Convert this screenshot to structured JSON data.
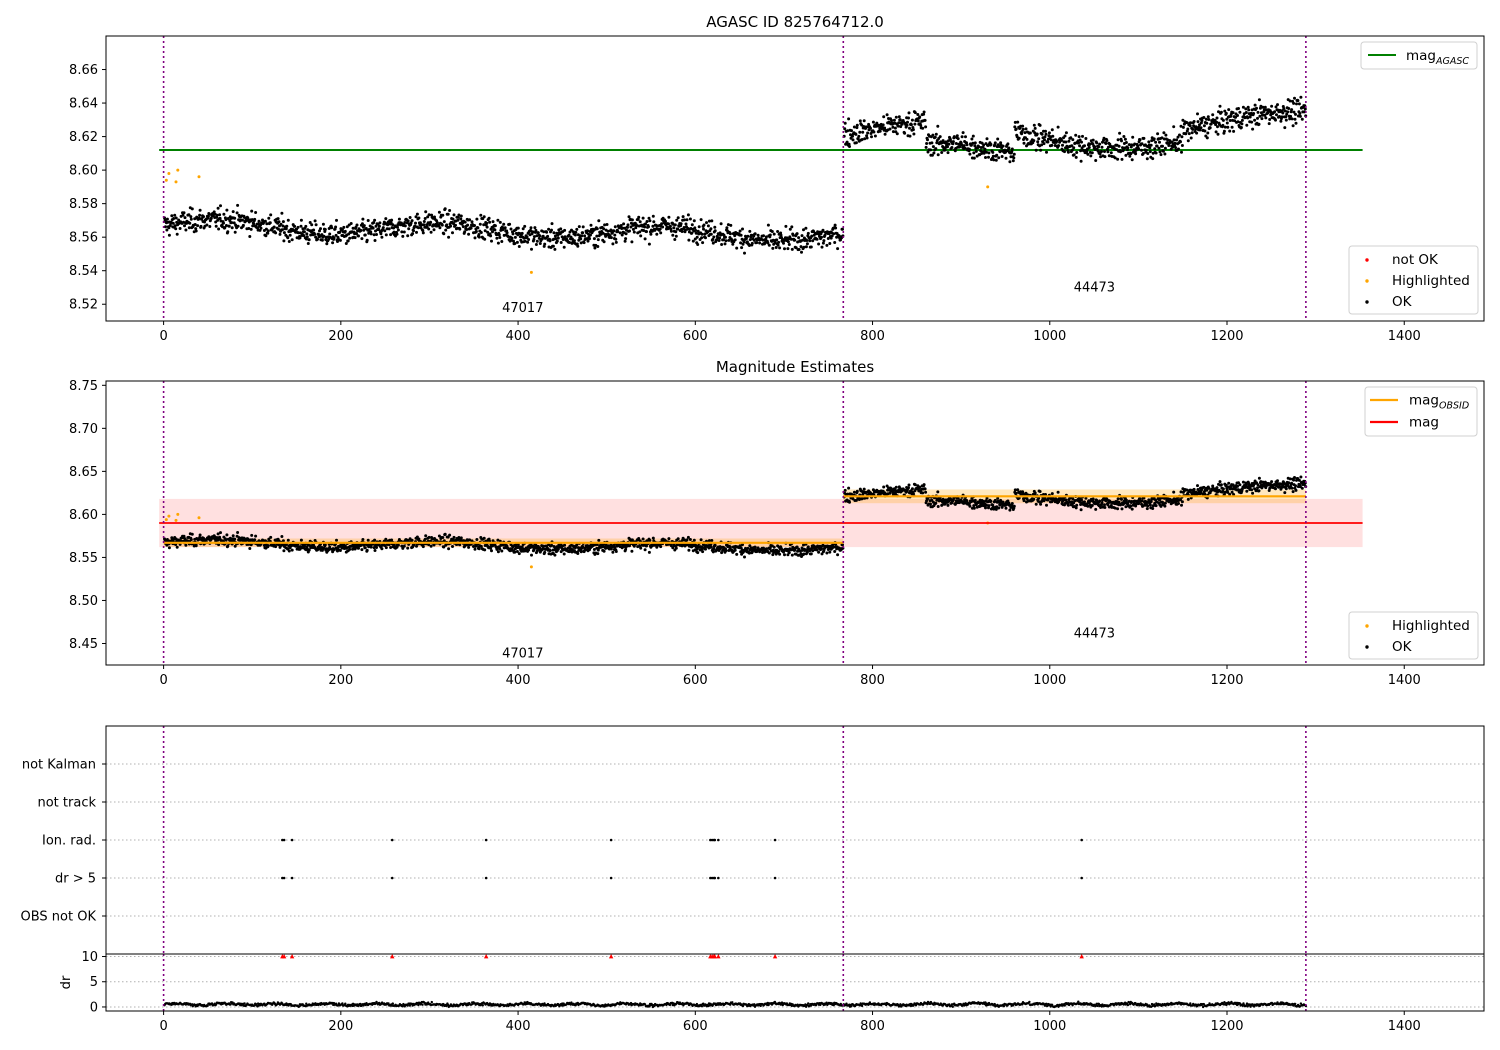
{
  "chart_data": [
    {
      "type": "scatter",
      "title": "AGASC ID 825764712.0",
      "xlabel": "",
      "ylabel": "",
      "xlim": [
        -65,
        1490
      ],
      "ylim": [
        8.51,
        8.68
      ],
      "xticks": [
        0,
        200,
        400,
        600,
        800,
        1000,
        1200,
        1400
      ],
      "yticks": [
        8.52,
        8.54,
        8.56,
        8.58,
        8.6,
        8.62,
        8.64,
        8.66
      ],
      "grid": false,
      "obs_boundaries": [
        0,
        767,
        1289
      ],
      "obsids": [
        {
          "label": "47017",
          "x": 382,
          "y": 8.5155
        },
        {
          "label": "44473",
          "x": 1027,
          "y": 8.5275
        }
      ],
      "segments": [
        {
          "x_start": 0,
          "x_end": 767,
          "level": 8.567,
          "sd": 0.0085,
          "lo": 8.55,
          "hi": 8.585
        },
        {
          "x_start": 767,
          "x_end": 1289,
          "level": 8.621,
          "sd": 0.009,
          "lo": 8.605,
          "hi": 8.645
        }
      ],
      "highlighted_points": [
        {
          "x": 3,
          "y": 8.594
        },
        {
          "x": 6,
          "y": 8.598
        },
        {
          "x": 14,
          "y": 8.593
        },
        {
          "x": 16,
          "y": 8.6
        },
        {
          "x": 40,
          "y": 8.596
        },
        {
          "x": 415,
          "y": 8.539
        },
        {
          "x": 930,
          "y": 8.59
        }
      ],
      "series": [
        {
          "name": "mag_AGASC",
          "value": 8.612,
          "x_range": [
            -5,
            1353
          ],
          "color": "#008000"
        }
      ],
      "legends": [
        {
          "position": "top-right",
          "entries": [
            {
              "label": "mag",
              "sub": "AGASC",
              "marker": "line",
              "color": "#008000"
            }
          ]
        },
        {
          "position": "bottom-right",
          "entries": [
            {
              "label": "not OK",
              "marker": "dot",
              "color": "#ff0000"
            },
            {
              "label": "Highlighted",
              "marker": "dot",
              "color": "#ffa500"
            },
            {
              "label": "OK",
              "marker": "dot",
              "color": "#000000"
            }
          ]
        }
      ]
    },
    {
      "type": "scatter",
      "title": "Magnitude Estimates",
      "xlabel": "",
      "ylabel": "",
      "xlim": [
        -65,
        1490
      ],
      "ylim": [
        8.425,
        8.755
      ],
      "xticks": [
        0,
        200,
        400,
        600,
        800,
        1000,
        1200,
        1400
      ],
      "yticks": [
        8.45,
        8.5,
        8.55,
        8.6,
        8.65,
        8.7,
        8.75
      ],
      "grid": false,
      "obs_boundaries": [
        0,
        767,
        1289
      ],
      "obsids": [
        {
          "label": "47017",
          "x": 382,
          "y": 8.434
        },
        {
          "label": "44473",
          "x": 1027,
          "y": 8.457
        }
      ],
      "segments": [
        {
          "x_start": 0,
          "x_end": 767,
          "level": 8.567,
          "sd": 0.0085,
          "lo": 8.55,
          "hi": 8.585
        },
        {
          "x_start": 767,
          "x_end": 1289,
          "level": 8.621,
          "sd": 0.009,
          "lo": 8.605,
          "hi": 8.645
        }
      ],
      "obsid_means": [
        {
          "x_start": 0,
          "x_end": 767,
          "value": 8.567,
          "band": [
            8.562,
            8.572
          ]
        },
        {
          "x_start": 767,
          "x_end": 1289,
          "value": 8.621,
          "band": [
            8.613,
            8.629
          ]
        }
      ],
      "overall_mag": {
        "value": 8.59,
        "band": [
          8.562,
          8.618
        ],
        "x_range": [
          -5,
          1353
        ]
      },
      "highlighted_points": [
        {
          "x": 3,
          "y": 8.594
        },
        {
          "x": 6,
          "y": 8.598
        },
        {
          "x": 14,
          "y": 8.593
        },
        {
          "x": 16,
          "y": 8.6
        },
        {
          "x": 40,
          "y": 8.596
        },
        {
          "x": 415,
          "y": 8.539
        },
        {
          "x": 930,
          "y": 8.59
        }
      ],
      "series": [
        {
          "name": "mag_OBSID",
          "color": "#ffa500"
        },
        {
          "name": "mag",
          "color": "#ff0000"
        }
      ],
      "legends": [
        {
          "position": "top-right",
          "entries": [
            {
              "label": "mag",
              "sub": "OBSID",
              "marker": "line",
              "color": "#ffa500"
            },
            {
              "label": "mag",
              "marker": "line",
              "color": "#ff0000"
            }
          ]
        },
        {
          "position": "bottom-right",
          "entries": [
            {
              "label": "Highlighted",
              "marker": "dot",
              "color": "#ffa500"
            },
            {
              "label": "OK",
              "marker": "dot",
              "color": "#000000"
            }
          ]
        }
      ]
    },
    {
      "type": "scatter",
      "title": "",
      "xlim": [
        -65,
        1490
      ],
      "xticks": [
        0,
        200,
        400,
        600,
        800,
        1000,
        1200,
        1400
      ],
      "obs_boundaries": [
        0,
        767,
        1289
      ],
      "flag_rows": [
        "not Kalman",
        "not track",
        "Ion. rad.",
        "dr > 5",
        "OBS not OK"
      ],
      "flag_points": [
        {
          "row": "Ion. rad.",
          "x": [
            134,
            136,
            145,
            258,
            364,
            505,
            617,
            619,
            621,
            622,
            626,
            690,
            1036
          ]
        },
        {
          "row": "dr > 5",
          "x": [
            134,
            136,
            145,
            258,
            364,
            505,
            617,
            619,
            621,
            622,
            626,
            690,
            1036
          ]
        }
      ]
    },
    {
      "type": "scatter",
      "title": "",
      "xlabel": "",
      "ylabel": "dr",
      "xlim": [
        -65,
        1490
      ],
      "ylim": [
        -0.8,
        10.5
      ],
      "xticks": [
        0,
        200,
        400,
        600,
        800,
        1000,
        1200,
        1400
      ],
      "yticks": [
        0,
        5,
        10
      ],
      "grid": true,
      "obs_boundaries": [
        0,
        767,
        1289
      ],
      "dr_typical": 0.5,
      "dr_capped": {
        "value": 10,
        "x": [
          134,
          136,
          145,
          258,
          364,
          505,
          617,
          619,
          621,
          622,
          626,
          690,
          1036
        ]
      }
    }
  ]
}
